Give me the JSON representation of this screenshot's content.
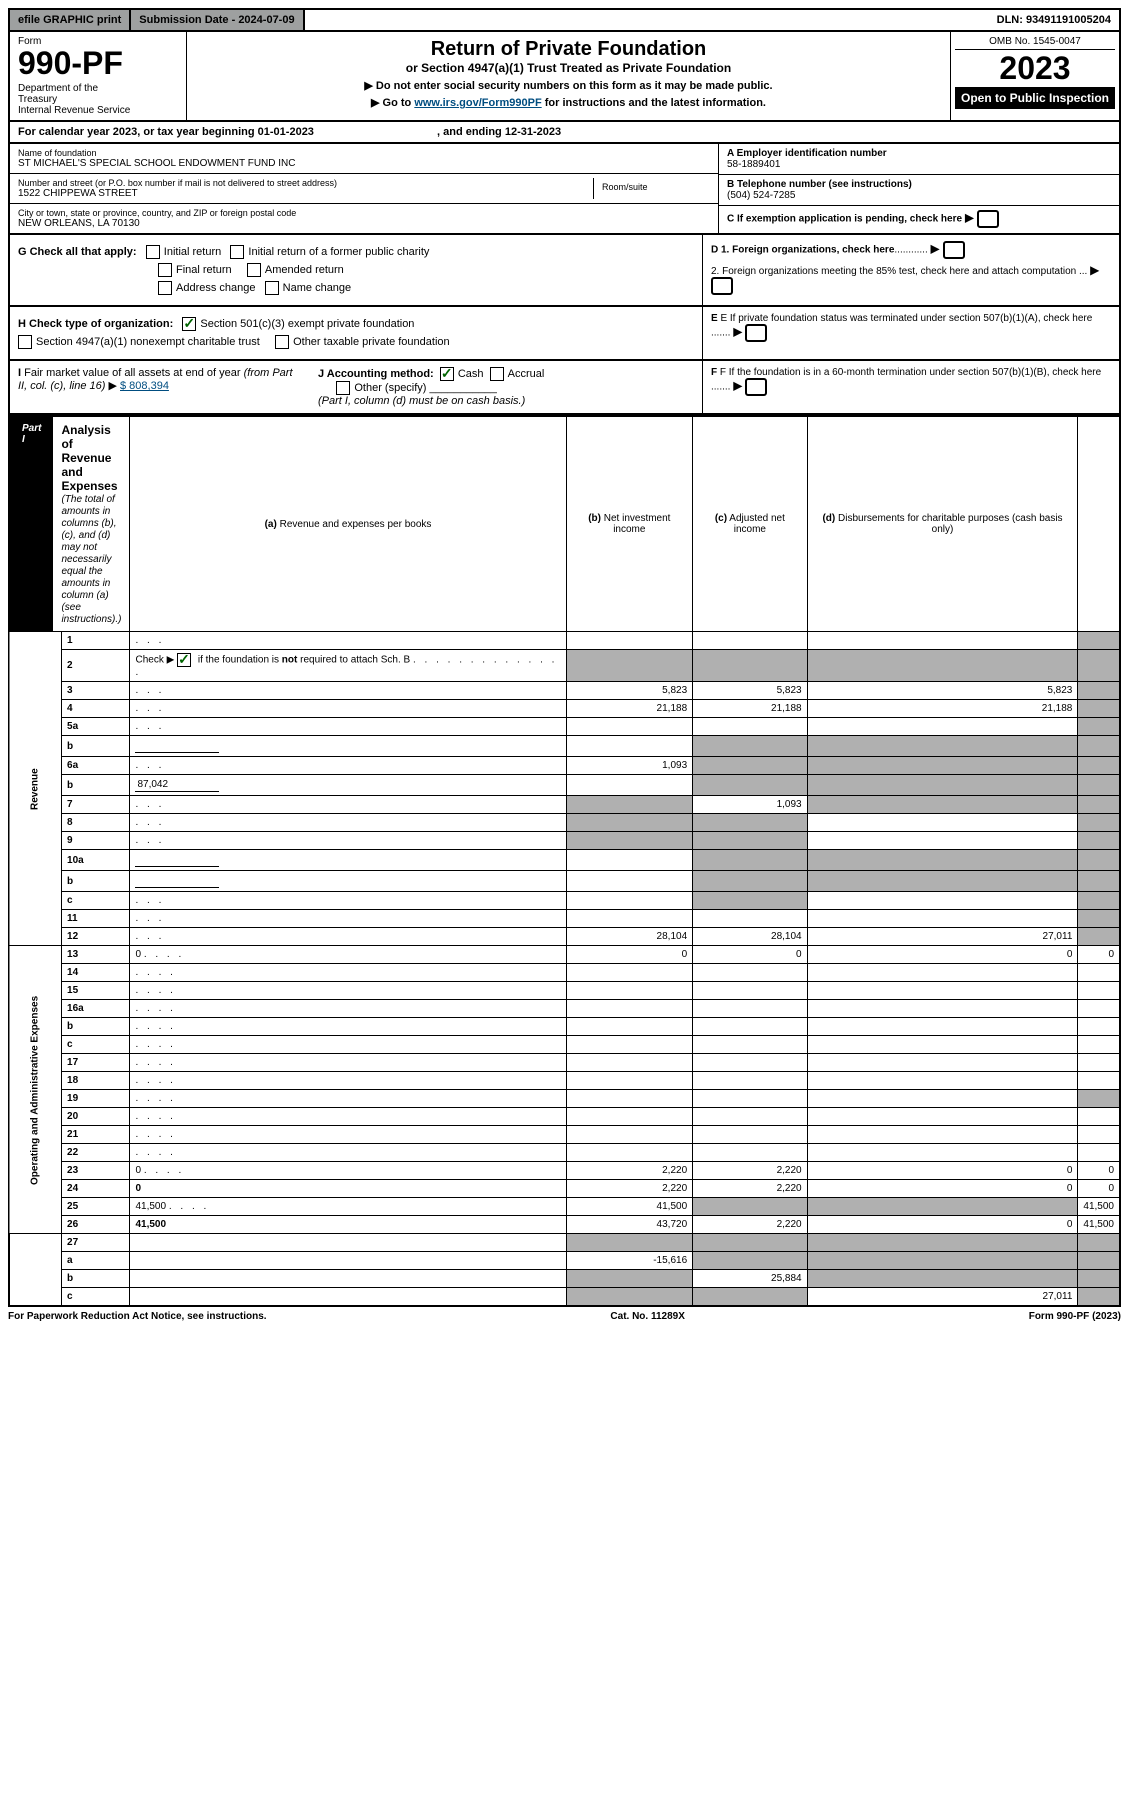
{
  "top": {
    "efile": "efile GRAPHIC print",
    "sub_date_label": "Submission Date - 2024-07-09",
    "dln": "DLN: 93491191005204"
  },
  "header": {
    "form_label": "Form",
    "form_num": "990-PF",
    "dept": "Department of the Treasury\nInternal Revenue Service",
    "title": "Return of Private Foundation",
    "subtitle": "or Section 4947(a)(1) Trust Treated as Private Foundation",
    "note1": "▶ Do not enter social security numbers on this form as it may be made public.",
    "note2_pre": "▶ Go to ",
    "note2_link": "www.irs.gov/Form990PF",
    "note2_post": " for instructions and the latest information.",
    "omb": "OMB No. 1545-0047",
    "year": "2023",
    "open": "Open to Public Inspection"
  },
  "calyear": {
    "text_pre": "For calendar year 2023, or tax year beginning ",
    "begin": "01-01-2023",
    "mid": " , and ending ",
    "end": "12-31-2023"
  },
  "info": {
    "name_label": "Name of foundation",
    "name": "ST MICHAEL'S SPECIAL SCHOOL ENDOWMENT FUND INC",
    "addr_label": "Number and street (or P.O. box number if mail is not delivered to street address)",
    "addr": "1522 CHIPPEWA STREET",
    "room_label": "Room/suite",
    "city_label": "City or town, state or province, country, and ZIP or foreign postal code",
    "city": "NEW ORLEANS, LA  70130",
    "a_label": "A Employer identification number",
    "a_val": "58-1889401",
    "b_label": "B Telephone number (see instructions)",
    "b_val": "(504) 524-7285",
    "c_label": "C If exemption application is pending, check here"
  },
  "g": {
    "label": "G Check all that apply:",
    "opts": [
      "Initial return",
      "Initial return of a former public charity",
      "Final return",
      "Amended return",
      "Address change",
      "Name change"
    ]
  },
  "d": {
    "d1": "D 1. Foreign organizations, check here",
    "d2": "2. Foreign organizations meeting the 85% test, check here and attach computation ...",
    "e": "E  If private foundation status was terminated under section 507(b)(1)(A), check here .......",
    "f": "F  If the foundation is in a 60-month termination under section 507(b)(1)(B), check here ......."
  },
  "h": {
    "label": "H Check type of organization:",
    "opt1": "Section 501(c)(3) exempt private foundation",
    "opt2": "Section 4947(a)(1) nonexempt charitable trust",
    "opt3": "Other taxable private foundation"
  },
  "i": {
    "label": "I Fair market value of all assets at end of year (from Part II, col. (c), line 16) ▶",
    "val": "$  808,394"
  },
  "j": {
    "label": "J Accounting method:",
    "cash": "Cash",
    "accrual": "Accrual",
    "other": "Other (specify)",
    "note": "(Part I, column (d) must be on cash basis.)"
  },
  "part1": {
    "label": "Part I",
    "title": "Analysis of Revenue and Expenses",
    "note": "(The total of amounts in columns (b), (c), and (d) may not necessarily equal the amounts in column (a) (see instructions).)",
    "cols": {
      "a": "(a) Revenue and expenses per books",
      "b": "(b) Net investment income",
      "c": "(c) Adjusted net income",
      "d": "(d) Disbursements for charitable purposes (cash basis only)"
    }
  },
  "sections": {
    "revenue": "Revenue",
    "expenses": "Operating and Administrative Expenses"
  },
  "lines": [
    {
      "n": "1",
      "d": "",
      "a": "",
      "b": "",
      "c": "",
      "d_shade": true
    },
    {
      "n": "2",
      "d": "",
      "a": "",
      "b": "",
      "c": "",
      "all_shade": true,
      "desc_only": true,
      "checked": true
    },
    {
      "n": "3",
      "d": "",
      "a": "5,823",
      "b": "5,823",
      "c": "5,823",
      "d_shade": true
    },
    {
      "n": "4",
      "d": "",
      "a": "21,188",
      "b": "21,188",
      "c": "21,188",
      "d_shade": true
    },
    {
      "n": "5a",
      "d": "",
      "a": "",
      "b": "",
      "c": "",
      "d_shade": true
    },
    {
      "n": "b",
      "d": "",
      "a": "",
      "b": "",
      "c": "",
      "bcd_shade": true,
      "inline": true
    },
    {
      "n": "6a",
      "d": "",
      "a": "1,093",
      "b": "",
      "c": "",
      "bcd_shade": true
    },
    {
      "n": "b",
      "d": "",
      "a": "",
      "b": "",
      "c": "",
      "bcd_shade": true,
      "inline": true,
      "inline_val": "87,042"
    },
    {
      "n": "7",
      "d": "",
      "a": "",
      "b": "1,093",
      "c": "",
      "a_shade": true,
      "cd_shade": true
    },
    {
      "n": "8",
      "d": "",
      "a": "",
      "b": "",
      "c": "",
      "ab_shade": true,
      "d_shade": true
    },
    {
      "n": "9",
      "d": "",
      "a": "",
      "b": "",
      "c": "",
      "ab_shade": true,
      "d_shade": true
    },
    {
      "n": "10a",
      "d": "",
      "a": "",
      "b": "",
      "c": "",
      "bcd_shade": true,
      "inline": true
    },
    {
      "n": "b",
      "d": "",
      "a": "",
      "b": "",
      "c": "",
      "bcd_shade": true,
      "inline": true
    },
    {
      "n": "c",
      "d": "",
      "a": "",
      "b": "",
      "c": "",
      "b_shade": true,
      "d_shade": true
    },
    {
      "n": "11",
      "d": "",
      "a": "",
      "b": "",
      "c": "",
      "d_shade": true
    },
    {
      "n": "12",
      "d": "",
      "a": "28,104",
      "b": "28,104",
      "c": "27,011",
      "d_shade": true,
      "bold": true
    }
  ],
  "exp_lines": [
    {
      "n": "13",
      "d": "0",
      "a": "0",
      "b": "0",
      "c": "0"
    },
    {
      "n": "14",
      "d": "",
      "a": "",
      "b": "",
      "c": ""
    },
    {
      "n": "15",
      "d": "",
      "a": "",
      "b": "",
      "c": ""
    },
    {
      "n": "16a",
      "d": "",
      "a": "",
      "b": "",
      "c": ""
    },
    {
      "n": "b",
      "d": "",
      "a": "",
      "b": "",
      "c": ""
    },
    {
      "n": "c",
      "d": "",
      "a": "",
      "b": "",
      "c": ""
    },
    {
      "n": "17",
      "d": "",
      "a": "",
      "b": "",
      "c": ""
    },
    {
      "n": "18",
      "d": "",
      "a": "",
      "b": "",
      "c": ""
    },
    {
      "n": "19",
      "d": "",
      "a": "",
      "b": "",
      "c": "",
      "d_shade": true
    },
    {
      "n": "20",
      "d": "",
      "a": "",
      "b": "",
      "c": ""
    },
    {
      "n": "21",
      "d": "",
      "a": "",
      "b": "",
      "c": ""
    },
    {
      "n": "22",
      "d": "",
      "a": "",
      "b": "",
      "c": ""
    },
    {
      "n": "23",
      "d": "0",
      "a": "2,220",
      "b": "2,220",
      "c": "0"
    },
    {
      "n": "24",
      "d": "0",
      "a": "2,220",
      "b": "2,220",
      "c": "0",
      "bold": true
    },
    {
      "n": "25",
      "d": "41,500",
      "a": "41,500",
      "b": "",
      "c": "",
      "bc_shade": true
    },
    {
      "n": "26",
      "d": "41,500",
      "a": "43,720",
      "b": "2,220",
      "c": "0",
      "bold": true
    }
  ],
  "sub_lines": [
    {
      "n": "27",
      "d": "",
      "a": "",
      "b": "",
      "c": "",
      "all_shade": true
    },
    {
      "n": "a",
      "d": "",
      "a": "-15,616",
      "b": "",
      "c": "",
      "bcd_shade": true,
      "bold": true
    },
    {
      "n": "b",
      "d": "",
      "a": "",
      "b": "25,884",
      "c": "",
      "a_shade": true,
      "cd_shade": true,
      "bold": true
    },
    {
      "n": "c",
      "d": "",
      "a": "",
      "b": "",
      "c": "27,011",
      "ab_shade": true,
      "d_shade": true,
      "bold": true
    }
  ],
  "footer": {
    "left": "For Paperwork Reduction Act Notice, see instructions.",
    "mid": "Cat. No. 11289X",
    "right": "Form 990-PF (2023)"
  }
}
